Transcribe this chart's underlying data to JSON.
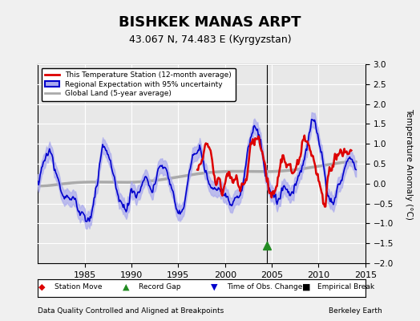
{
  "title": "BISHKEK MANAS ARPT",
  "subtitle": "43.067 N, 74.483 E (Kyrgyzstan)",
  "ylabel": "Temperature Anomaly (°C)",
  "xlabel_note": "Data Quality Controlled and Aligned at Breakpoints",
  "credit": "Berkeley Earth",
  "ylim": [
    -2.0,
    3.0
  ],
  "xlim": [
    1980,
    2015
  ],
  "yticks": [
    -2.0,
    -1.5,
    -1.0,
    -0.5,
    0.0,
    0.5,
    1.0,
    1.5,
    2.0,
    2.5,
    3.0
  ],
  "xticks": [
    1985,
    1990,
    1995,
    2000,
    2005,
    2010,
    2015
  ],
  "bg_color": "#e8e8e8",
  "grid_color": "#ffffff",
  "red_color": "#dd0000",
  "blue_color": "#0000cc",
  "blue_fill_color": "#aaaaee",
  "gray_color": "#aaaaaa",
  "vline_x": 2004.5,
  "marker_gap_x": 2004.5,
  "marker_gap_y": -1.55,
  "legend_items": [
    {
      "label": "This Temperature Station (12-month average)",
      "color": "#dd0000",
      "lw": 2
    },
    {
      "label": "Regional Expectation with 95% uncertainty",
      "color": "#0000cc",
      "lw": 2
    },
    {
      "label": "Global Land (5-year average)",
      "color": "#aaaaaa",
      "lw": 2
    }
  ],
  "bottom_legend": [
    {
      "label": "Station Move",
      "color": "#dd0000",
      "marker": "D"
    },
    {
      "label": "Record Gap",
      "color": "#228B22",
      "marker": "^"
    },
    {
      "label": "Time of Obs. Change",
      "color": "#0000cc",
      "marker": "v"
    },
    {
      "label": "Empirical Break",
      "color": "#000000",
      "marker": "s"
    }
  ]
}
